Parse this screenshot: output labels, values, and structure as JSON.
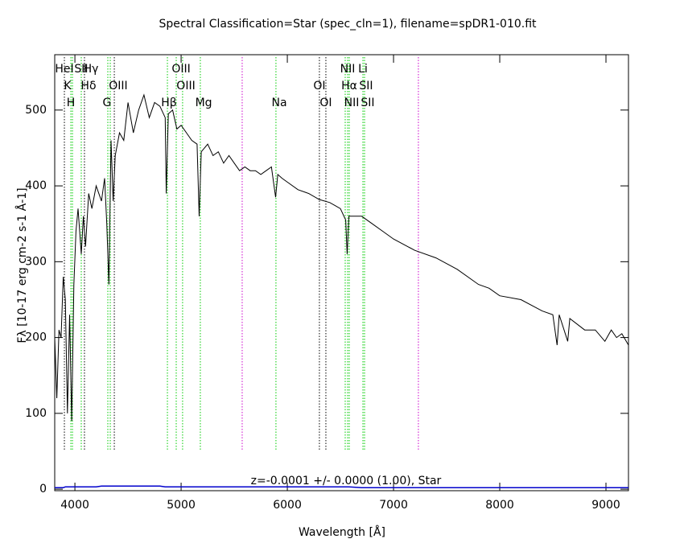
{
  "chart_data": {
    "type": "line",
    "title": "Spectral Classification=Star (spec_cln=1), filename=spDR1-010.fit",
    "x_label": "Wavelength [Å]",
    "y_label": "Fλ [10-17 erg cm-2 s-1 Å-1]",
    "annotation": "z=-0.0001 +/- 0.0000 (1.00), Star",
    "x": [
      3810,
      3830,
      3850,
      3870,
      3890,
      3910,
      3930,
      3950,
      3970,
      3990,
      4010,
      4030,
      4060,
      4080,
      4100,
      4130,
      4160,
      4200,
      4250,
      4280,
      4300,
      4320,
      4340,
      4360,
      4380,
      4420,
      4460,
      4500,
      4550,
      4600,
      4650,
      4700,
      4750,
      4800,
      4850,
      4860,
      4880,
      4920,
      4960,
      5000,
      5050,
      5100,
      5150,
      5170,
      5190,
      5250,
      5300,
      5350,
      5400,
      5450,
      5500,
      5550,
      5600,
      5650,
      5700,
      5750,
      5800,
      5850,
      5890,
      5910,
      5950,
      6000,
      6100,
      6200,
      6300,
      6400,
      6500,
      6550,
      6563,
      6580,
      6700,
      6800,
      6900,
      7000,
      7200,
      7400,
      7600,
      7800,
      7900,
      8000,
      8200,
      8400,
      8500,
      8540,
      8560,
      8640,
      8660,
      8800,
      8900,
      8990,
      9050,
      9100,
      9150,
      9212
    ],
    "series": [
      {
        "name": "flux",
        "color": "#000000",
        "values": [
          200,
          120,
          210,
          200,
          280,
          250,
          100,
          230,
          90,
          270,
          340,
          370,
          310,
          360,
          320,
          390,
          370,
          400,
          380,
          410,
          350,
          270,
          460,
          380,
          440,
          470,
          460,
          510,
          470,
          500,
          520,
          490,
          510,
          505,
          490,
          390,
          495,
          500,
          475,
          480,
          470,
          460,
          455,
          360,
          445,
          455,
          440,
          445,
          430,
          440,
          430,
          420,
          425,
          420,
          420,
          415,
          420,
          425,
          385,
          415,
          410,
          405,
          395,
          390,
          382,
          378,
          370,
          355,
          310,
          360,
          360,
          350,
          340,
          330,
          315,
          305,
          290,
          270,
          265,
          255,
          250,
          235,
          230,
          190,
          230,
          195,
          225,
          210,
          210,
          195,
          210,
          200,
          205,
          190
        ]
      },
      {
        "name": "error",
        "color": "#0000cc",
        "values": [
          2,
          2,
          2,
          2,
          2,
          3,
          3,
          3,
          3,
          3,
          3,
          3,
          3,
          3,
          3,
          3,
          3,
          3,
          4,
          4,
          4,
          4,
          4,
          4,
          4,
          4,
          4,
          4,
          4,
          4,
          4,
          4,
          4,
          4,
          3,
          3,
          3,
          3,
          3,
          3,
          3,
          3,
          3,
          3,
          3,
          3,
          3,
          3,
          3,
          3,
          3,
          3,
          3,
          3,
          3,
          3,
          3,
          3,
          3,
          3,
          3,
          3,
          3,
          3,
          3,
          3,
          3,
          3,
          3,
          3,
          2,
          2,
          2,
          2,
          2,
          2,
          2,
          2,
          2,
          2,
          2,
          2,
          2,
          2,
          2,
          2,
          2,
          2,
          2,
          2,
          2,
          2,
          2,
          2
        ]
      }
    ],
    "xlim": [
      3810,
      9212
    ],
    "ylim": [
      -2,
      573
    ],
    "xticks": [
      4000,
      5000,
      6000,
      7000,
      8000,
      9000
    ],
    "yticks": [
      0,
      100,
      200,
      300,
      400,
      500
    ],
    "lines": [
      {
        "wavelength": 3962,
        "color": "#00cc00"
      },
      {
        "wavelength": 3977,
        "color": "#00cc00"
      },
      {
        "wavelength": 4060,
        "color": "#00cc00"
      },
      {
        "wavelength": 4310,
        "color": "#00cc00"
      },
      {
        "wavelength": 4333,
        "color": "#00cc00"
      },
      {
        "wavelength": 4871,
        "color": "#00cc00"
      },
      {
        "wavelength": 4954,
        "color": "#00cc00"
      },
      {
        "wavelength": 5014,
        "color": "#00cc00"
      },
      {
        "wavelength": 5181,
        "color": "#00cc00"
      },
      {
        "wavelength": 5893,
        "color": "#00cc00"
      },
      {
        "wavelength": 6545,
        "color": "#00cc00"
      },
      {
        "wavelength": 6568,
        "color": "#00cc00"
      },
      {
        "wavelength": 6583,
        "color": "#00cc00"
      },
      {
        "wavelength": 6712,
        "color": "#00cc00"
      },
      {
        "wavelength": 6727,
        "color": "#00cc00"
      },
      {
        "wavelength": 3901,
        "color": "#000000"
      },
      {
        "wavelength": 4090,
        "color": "#000000"
      },
      {
        "wavelength": 4371,
        "color": "#000000"
      },
      {
        "wavelength": 6302,
        "color": "#000000"
      },
      {
        "wavelength": 6363,
        "color": "#000000"
      },
      {
        "wavelength": 5575,
        "color": "#cc00cc"
      },
      {
        "wavelength": 7234,
        "color": "#cc00cc"
      }
    ],
    "line_labels": [
      {
        "text": "HeI",
        "wavelength": 3901,
        "row": 1
      },
      {
        "text": "SII",
        "wavelength": 4060,
        "row": 1
      },
      {
        "text": "Hγ",
        "wavelength": 4151,
        "row": 1
      },
      {
        "text": "OIII",
        "wavelength": 5000,
        "row": 1
      },
      {
        "text": "NII",
        "wavelength": 6568,
        "row": 1
      },
      {
        "text": "Li",
        "wavelength": 6712,
        "row": 1
      },
      {
        "text": "K",
        "wavelength": 3931,
        "row": 2
      },
      {
        "text": "Hδ",
        "wavelength": 4128,
        "row": 2
      },
      {
        "text": "OIII",
        "wavelength": 4408,
        "row": 2
      },
      {
        "text": "OIII",
        "wavelength": 5045,
        "row": 2
      },
      {
        "text": "OI",
        "wavelength": 6302,
        "row": 2
      },
      {
        "text": "Hα",
        "wavelength": 6583,
        "row": 2
      },
      {
        "text": "SII",
        "wavelength": 6742,
        "row": 2
      },
      {
        "text": "H",
        "wavelength": 3962,
        "row": 3
      },
      {
        "text": "G",
        "wavelength": 4302,
        "row": 3
      },
      {
        "text": "Hβ",
        "wavelength": 4886,
        "row": 3
      },
      {
        "text": "Mg",
        "wavelength": 5212,
        "row": 3
      },
      {
        "text": "Na",
        "wavelength": 5924,
        "row": 3
      },
      {
        "text": "OI",
        "wavelength": 6363,
        "row": 3
      },
      {
        "text": "NII",
        "wavelength": 6606,
        "row": 3
      },
      {
        "text": "SII",
        "wavelength": 6757,
        "row": 3
      }
    ]
  }
}
